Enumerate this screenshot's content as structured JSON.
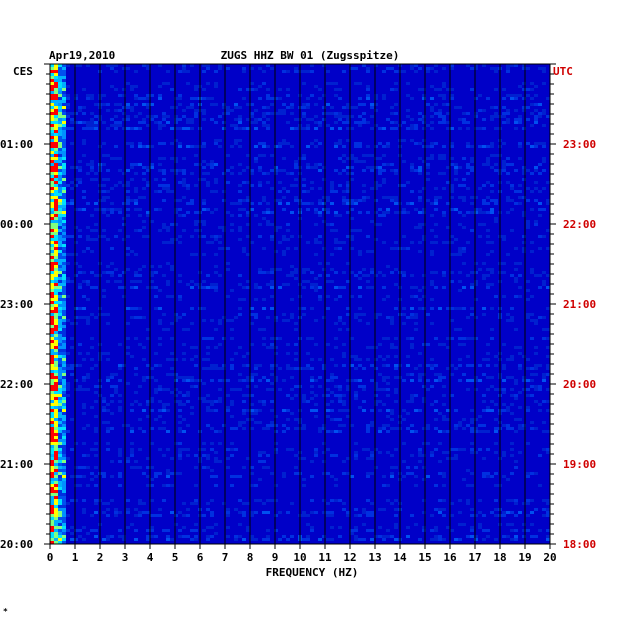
{
  "chart_data": {
    "type": "heatmap",
    "date": "Apr19,2010",
    "title": "ZUGS HHZ BW 01 (Zugsspitze)",
    "xlabel": "FREQUENCY (HZ)",
    "xlim": [
      0,
      20
    ],
    "x_ticks": [
      "0",
      "1",
      "2",
      "3",
      "4",
      "5",
      "6",
      "7",
      "8",
      "9",
      "10",
      "11",
      "12",
      "13",
      "14",
      "15",
      "16",
      "17",
      "18",
      "19",
      "20"
    ],
    "left_axis_label": "CES",
    "right_axis_label": "UTC",
    "left_time_ticks": [
      "01:00",
      "00:00",
      "23:00",
      "22:00",
      "21:00",
      "20:00"
    ],
    "right_time_ticks": [
      "23:00",
      "22:00",
      "21:00",
      "20:00",
      "19:00",
      "18:00"
    ],
    "time_range_utc": [
      "18:00",
      "24:00"
    ],
    "colors": {
      "background": "#0000c8",
      "low": "#0020d0",
      "mid": "#0090ff",
      "high": "#00e0ff",
      "peak": "#ffff00",
      "max": "#ff0000",
      "grid": "#000000",
      "utc_label": "#d00000"
    }
  },
  "footer": {
    "mark": "*"
  }
}
